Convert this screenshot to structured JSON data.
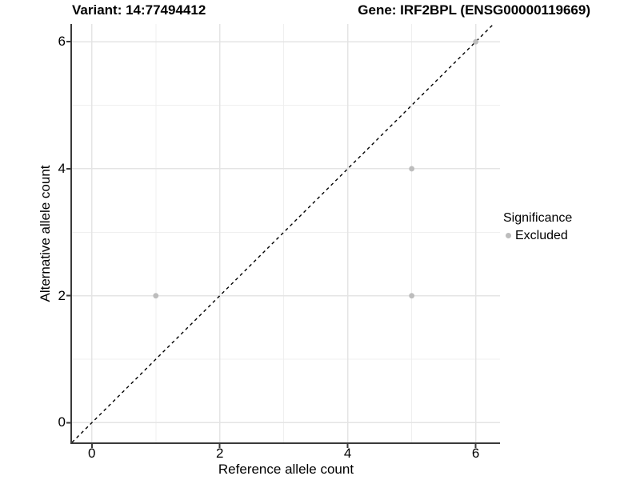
{
  "chart_data": {
    "type": "scatter",
    "title_left": "Variant: 14:77494412",
    "title_right": "Gene: IRF2BPL (ENSG00000119669)",
    "xlabel": "Reference allele count",
    "ylabel": "Alternative allele count",
    "xlim": [
      -0.31,
      6.38
    ],
    "ylim": [
      -0.31,
      6.28
    ],
    "xticks": [
      0,
      2,
      4,
      6
    ],
    "yticks": [
      0,
      2,
      4,
      6
    ],
    "x_minor_gridlines": [
      1,
      3,
      5
    ],
    "y_minor_gridlines": [
      1,
      3,
      5
    ],
    "grid": true,
    "identity_line": {
      "style": "dashed",
      "color": "#000000",
      "from": -0.31,
      "to": 6.28
    },
    "series": [
      {
        "name": "Excluded",
        "color": "#bdbdbd",
        "points": [
          [
            1,
            2
          ],
          [
            5,
            2
          ],
          [
            5,
            4
          ],
          [
            6,
            6
          ]
        ]
      }
    ],
    "legend": {
      "position": "right",
      "title": "Significance",
      "entries": [
        {
          "label": "Excluded",
          "color": "#bdbdbd"
        }
      ]
    },
    "colors": {
      "major_grid": "#e4e4e4",
      "minor_grid": "#efefef",
      "axis_line": "#3a3a3a",
      "point": "#bdbdbd"
    }
  }
}
